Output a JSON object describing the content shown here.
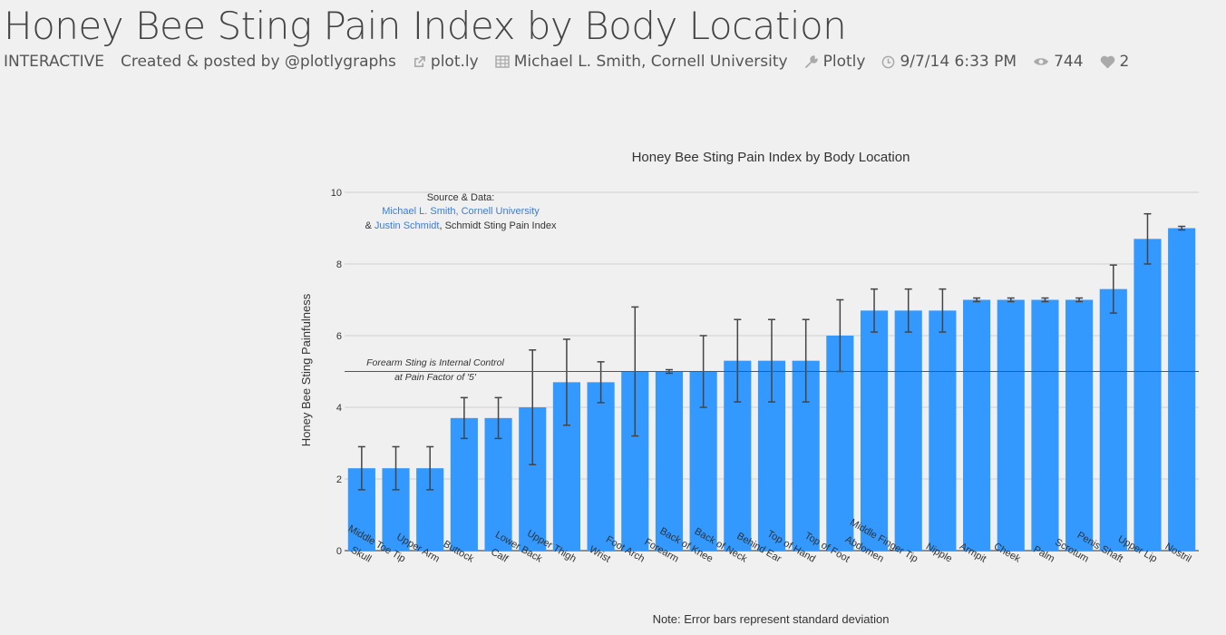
{
  "page": {
    "title": "Honey Bee Sting Pain Index by Body Location",
    "mode": "INTERACTIVE",
    "created_by": "Created & posted by @plotlygraphs",
    "link": "plot.ly",
    "data_source": "Michael L. Smith, Cornell University",
    "tool": "Plotly",
    "date": "9/7/14 6:33 PM",
    "views": "744",
    "likes": "2"
  },
  "icons": {
    "link": "external-link-icon",
    "source": "table-icon",
    "tool": "wrench-icon",
    "date": "clock-icon",
    "views": "eye-icon",
    "likes": "heart-icon"
  },
  "colors": {
    "bar": "#3399ff",
    "error_bar": "#444444",
    "link_text": "#3b7dd8"
  },
  "chart_data": {
    "type": "bar",
    "title": "Honey Bee Sting Pain Index by Body Location",
    "xlabel": "",
    "ylabel": "Honey Bee Sting Painfulness",
    "ylim": [
      0,
      10
    ],
    "yticks": [
      "0",
      "2",
      "4",
      "6",
      "8",
      "10"
    ],
    "grid": true,
    "categories": [
      "Skull",
      "Middle Toe Tip",
      "Upper Arm",
      "Buttock",
      "Calf",
      "Lower Back",
      "Upper Thigh",
      "Wrist",
      "Foot Arch",
      "Forearm",
      "Back of Knee",
      "Back of Neck",
      "Behind Ear",
      "Top of Hand",
      "Top of Foot",
      "Abdomen",
      "Middle Finger Tip",
      "Nipple",
      "Armpit",
      "Cheek",
      "Palm",
      "Scrotum",
      "Penis Shaft",
      "Upper Lip",
      "Nostril"
    ],
    "values": [
      2.3,
      2.3,
      2.3,
      3.7,
      3.7,
      4.0,
      4.7,
      4.7,
      5.0,
      5.0,
      5.0,
      5.3,
      5.3,
      5.3,
      6.0,
      6.7,
      6.7,
      6.7,
      7.0,
      7.0,
      7.0,
      7.0,
      7.3,
      8.7,
      9.0
    ],
    "errors": [
      0.6,
      0.6,
      0.6,
      0.57,
      0.57,
      1.6,
      1.2,
      0.57,
      1.8,
      0.05,
      1.0,
      1.15,
      1.15,
      1.15,
      1.0,
      0.6,
      0.6,
      0.6,
      0.05,
      0.05,
      0.05,
      0.05,
      0.67,
      0.7,
      0.05
    ],
    "reference_line": {
      "y": 5,
      "label_line1": "Forearm Sting is Internal Control",
      "label_line2": "at Pain Factor of '5'"
    },
    "source_annotation": {
      "line1": "Source & Data:",
      "line2_link": "Michael L. Smith, Cornell University",
      "line3_prefix": "& ",
      "line3_link": "Justin Schmidt",
      "line3_suffix": ", Schmidt Sting Pain Index"
    },
    "note": "Note: Error bars represent standard deviation"
  }
}
